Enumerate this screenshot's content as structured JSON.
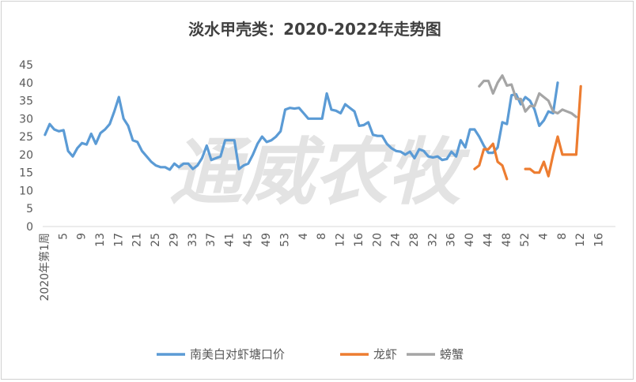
{
  "chart_data": {
    "type": "line",
    "title": "淡水甲壳类：2020-2022年走势图",
    "watermark": "通威农牧",
    "ylim": [
      0,
      45
    ],
    "yticks": [
      0,
      5,
      10,
      15,
      20,
      25,
      30,
      35,
      40,
      45
    ],
    "x_tick_labels": [
      "2020年第1周",
      "5",
      "9",
      "13",
      "17",
      "21",
      "25",
      "29",
      "33",
      "37",
      "41",
      "45",
      "49",
      "53",
      "4",
      "8",
      "12",
      "16",
      "20",
      "24",
      "28",
      "32",
      "36",
      "40",
      "44",
      "48",
      "52",
      "4",
      "8",
      "12",
      "16"
    ],
    "x_tick_step": 4,
    "x_count": 124,
    "grid": false,
    "legend_position": "bottom",
    "series": [
      {
        "name": "南美白对虾塘口价",
        "color": "#5b9bd5",
        "start_index": 0,
        "values": [
          25.5,
          28.5,
          27,
          26.5,
          26.8,
          21,
          19.5,
          21.8,
          23.2,
          22.8,
          25.8,
          23,
          26,
          27,
          28.5,
          32,
          36,
          30,
          28,
          24,
          23.5,
          21,
          19.5,
          18,
          17,
          16.5,
          16.5,
          15.8,
          17.5,
          16.5,
          17.5,
          17.5,
          16,
          17,
          19,
          22.5,
          18.5,
          19,
          19.5,
          24,
          24,
          24,
          16,
          17,
          17.5,
          20,
          23,
          25,
          23.5,
          24,
          25,
          26.5,
          32.5,
          33,
          32.8,
          33,
          31.5,
          30,
          30,
          30,
          30,
          37,
          32.5,
          32.2,
          31.5,
          34,
          33,
          32,
          28,
          28.2,
          29,
          25.5,
          25.2,
          25.2,
          23,
          21.8,
          21,
          20.8,
          20,
          20.8,
          19,
          21.5,
          21,
          19.5,
          19.2,
          19.5,
          18.5,
          18.8,
          20.8,
          19.5,
          24,
          22,
          27,
          27,
          25,
          22.5,
          20.5,
          20.5,
          22,
          29,
          28.5,
          36.5,
          36.8,
          34,
          36,
          35,
          32.5,
          28,
          29.5,
          32,
          31.5,
          40
        ]
      },
      {
        "name": "龙虾",
        "color": "#ed7d31",
        "start_index": 93,
        "values": [
          16,
          17,
          21.5,
          21.5,
          23,
          18,
          17,
          13.2,
          null,
          null,
          null,
          16,
          16,
          15,
          15,
          18,
          14,
          20,
          25,
          20,
          20,
          20,
          20,
          39
        ]
      },
      {
        "name": "螃蟹",
        "color": "#a5a5a5",
        "start_index": 94,
        "values": [
          39,
          40.5,
          40.5,
          37,
          40,
          42,
          39.2,
          39.5,
          35.5,
          35.5,
          32,
          33.5,
          33.5,
          37,
          36,
          35,
          32,
          31.5,
          32.5,
          32,
          31.5,
          30.5
        ]
      }
    ]
  }
}
